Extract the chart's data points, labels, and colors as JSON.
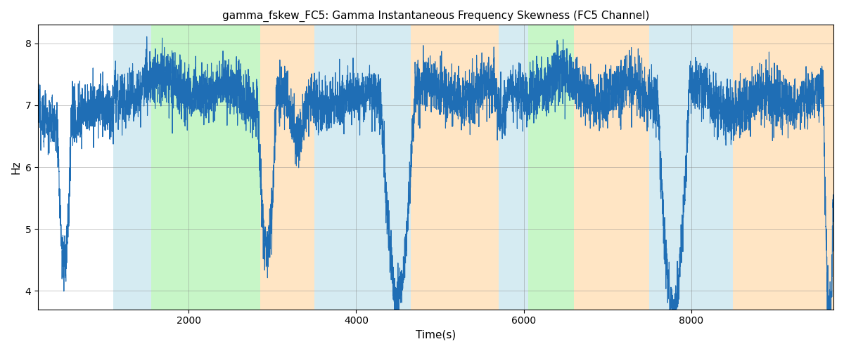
{
  "title": "gamma_fskew_FC5: Gamma Instantaneous Frequency Skewness (FC5 Channel)",
  "xlabel": "Time(s)",
  "ylabel": "Hz",
  "xlim": [
    200,
    9700
  ],
  "ylim": [
    3.7,
    8.3
  ],
  "yticks": [
    4,
    5,
    6,
    7,
    8
  ],
  "xticks": [
    2000,
    4000,
    6000,
    8000
  ],
  "line_color": "#1f6eb5",
  "line_width": 0.8,
  "bg_regions": [
    {
      "xmin": 1100,
      "xmax": 1550,
      "color": "#add8e6",
      "alpha": 0.5
    },
    {
      "xmin": 1550,
      "xmax": 2850,
      "color": "#90ee90",
      "alpha": 0.5
    },
    {
      "xmin": 2850,
      "xmax": 3500,
      "color": "#ffd59e",
      "alpha": 0.6
    },
    {
      "xmin": 3500,
      "xmax": 4650,
      "color": "#add8e6",
      "alpha": 0.5
    },
    {
      "xmin": 4650,
      "xmax": 5700,
      "color": "#ffd59e",
      "alpha": 0.6
    },
    {
      "xmin": 5700,
      "xmax": 6050,
      "color": "#add8e6",
      "alpha": 0.5
    },
    {
      "xmin": 6050,
      "xmax": 6600,
      "color": "#90ee90",
      "alpha": 0.5
    },
    {
      "xmin": 6600,
      "xmax": 7500,
      "color": "#ffd59e",
      "alpha": 0.6
    },
    {
      "xmin": 7500,
      "xmax": 8500,
      "color": "#add8e6",
      "alpha": 0.5
    },
    {
      "xmin": 8500,
      "xmax": 9700,
      "color": "#ffd59e",
      "alpha": 0.6
    }
  ],
  "seed": 12345,
  "n_points": 9500,
  "t_start": 200,
  "t_end": 9700
}
